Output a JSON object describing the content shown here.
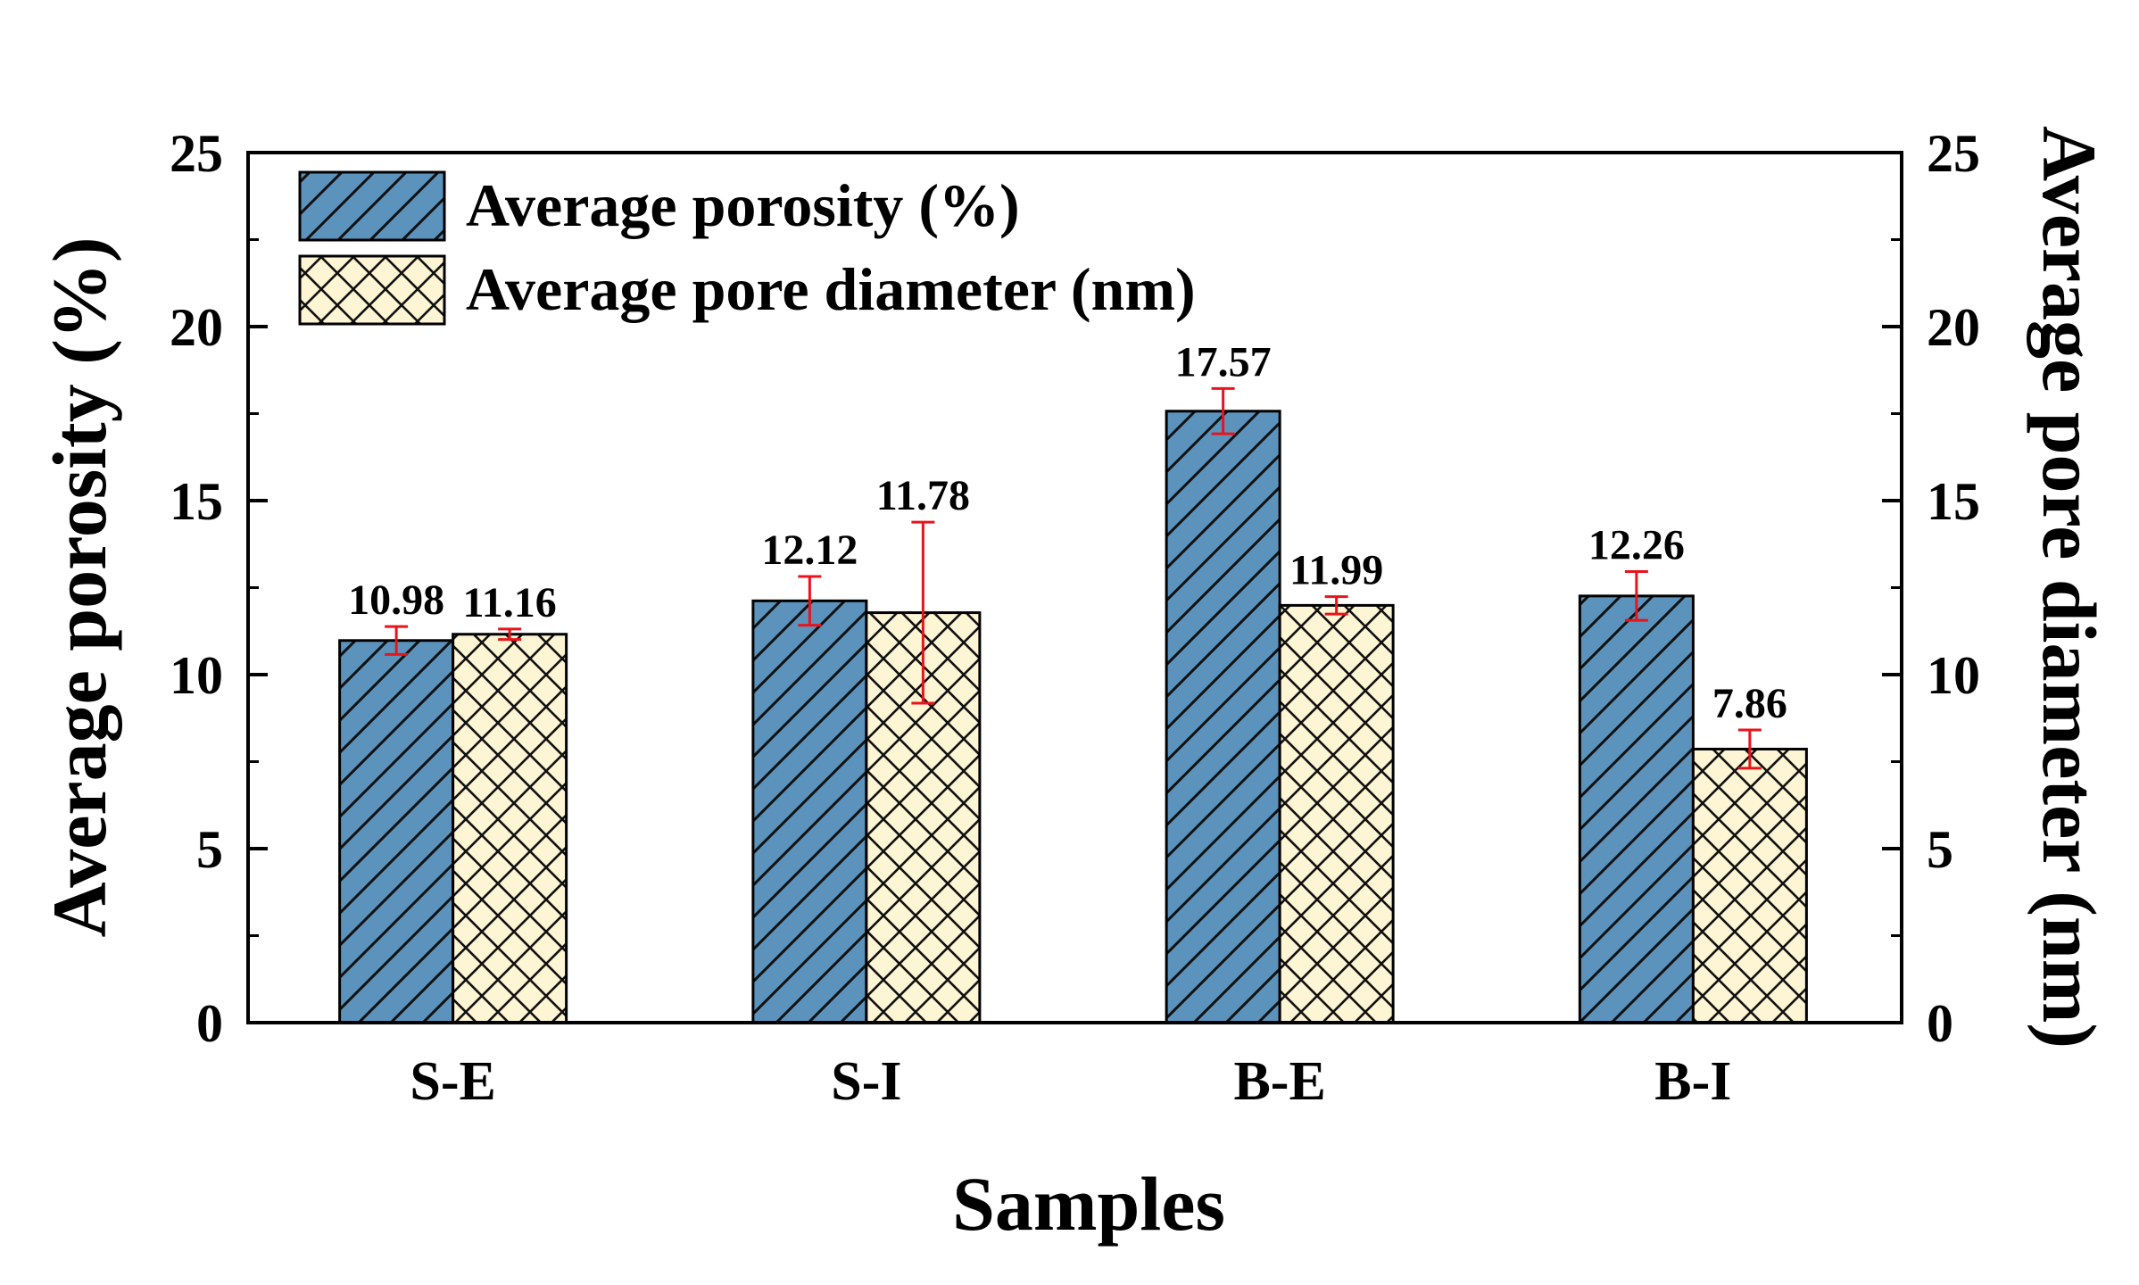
{
  "chart_data": {
    "type": "bar",
    "xlabel": "Samples",
    "ylabel": "Average porosity (%)",
    "y2label": "Average pore diameter (nm)",
    "categories": [
      "S-E",
      "S-I",
      "B-E",
      "B-I"
    ],
    "ylim": [
      0,
      25
    ],
    "y2lim": [
      0,
      25
    ],
    "yticks": [
      0,
      5,
      10,
      15,
      20,
      25
    ],
    "legend_position": "top-left",
    "series": [
      {
        "name": "Average porosity (%)",
        "axis": "left",
        "color": "#5b93bd",
        "pattern": "diagonal-hatch",
        "values": [
          10.98,
          12.12,
          17.57,
          12.26
        ],
        "labels": [
          "10.98",
          "12.12",
          "17.57",
          "12.26"
        ],
        "error": [
          0.4,
          0.7,
          0.65,
          0.7
        ]
      },
      {
        "name": "Average pore diameter (nm)",
        "axis": "right",
        "color": "#fdf5d3",
        "pattern": "cross-hatch",
        "values": [
          11.16,
          11.78,
          11.99,
          7.86
        ],
        "labels": [
          "11.16",
          "11.78",
          "11.99",
          "7.86"
        ],
        "error": [
          0.15,
          2.6,
          0.25,
          0.55
        ]
      }
    ],
    "error_bar_color": "#e8141b",
    "grid": false
  }
}
